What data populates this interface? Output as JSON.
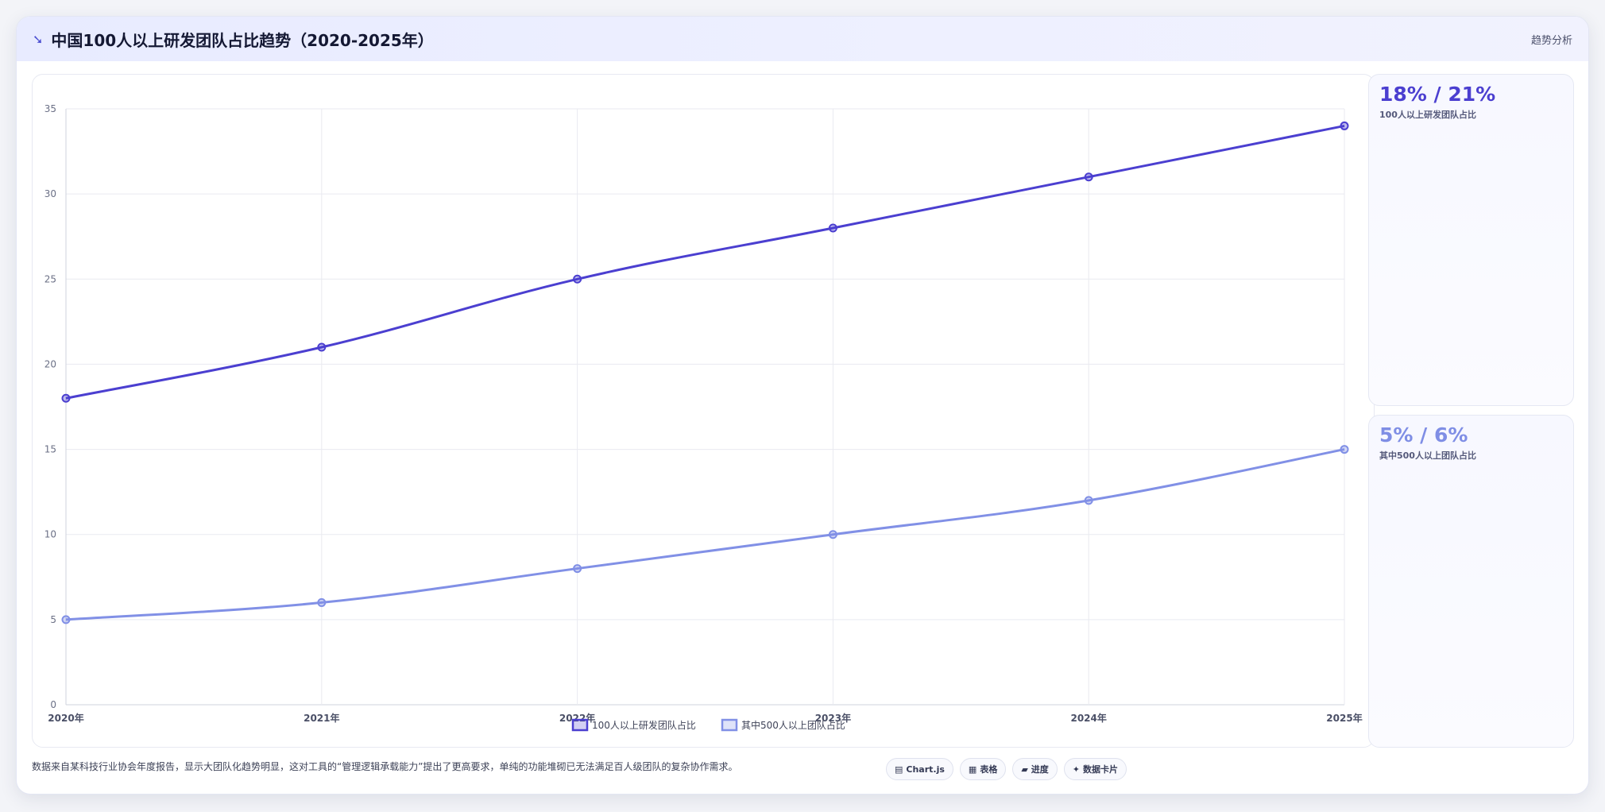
{
  "header": {
    "title": "中国100人以上研发团队占比趋势（2020-2025年）",
    "logo_icon": "swallow-icon",
    "action_label": "趋势分析"
  },
  "chart_data": {
    "type": "line",
    "x": [
      "2020年",
      "2021年",
      "2022年",
      "2023年",
      "2024年",
      "2025年"
    ],
    "series": [
      {
        "name": "100人以上研发团队占比",
        "values": [
          18,
          21,
          25,
          28,
          31,
          34
        ],
        "color": "#4b3fd0"
      },
      {
        "name": "其中500人以上团队占比",
        "values": [
          5,
          6,
          8,
          10,
          12,
          15
        ],
        "color": "#8190e6"
      }
    ],
    "ylim": [
      0,
      35
    ],
    "yticks": [
      0,
      5,
      10,
      15,
      20,
      25,
      30,
      35
    ],
    "grid": true,
    "legend": "bottom"
  },
  "stats": [
    {
      "value": "18% / 21%",
      "label": "100人以上研发团队占比",
      "color": "#4b3fd0"
    },
    {
      "value": "5% / 6%",
      "label": "其中500人以上团队占比",
      "color": "#7f8ee5"
    }
  ],
  "footer": {
    "note": "数据来自某科技行业协会年度报告，显示大团队化趋势明显，这对工具的“管理逻辑承载能力”提出了更高要求，单纯的功能堆砌已无法满足百人级团队的复杂协作需求。",
    "pills": [
      {
        "icon": "chart-icon",
        "glyph": "▤",
        "label": "Chart.js"
      },
      {
        "icon": "table-icon",
        "glyph": "▦",
        "label": "表格"
      },
      {
        "icon": "progress-icon",
        "glyph": "▰",
        "label": "进度"
      },
      {
        "icon": "sparkle-icon",
        "glyph": "✦",
        "label": "数据卡片"
      }
    ]
  }
}
